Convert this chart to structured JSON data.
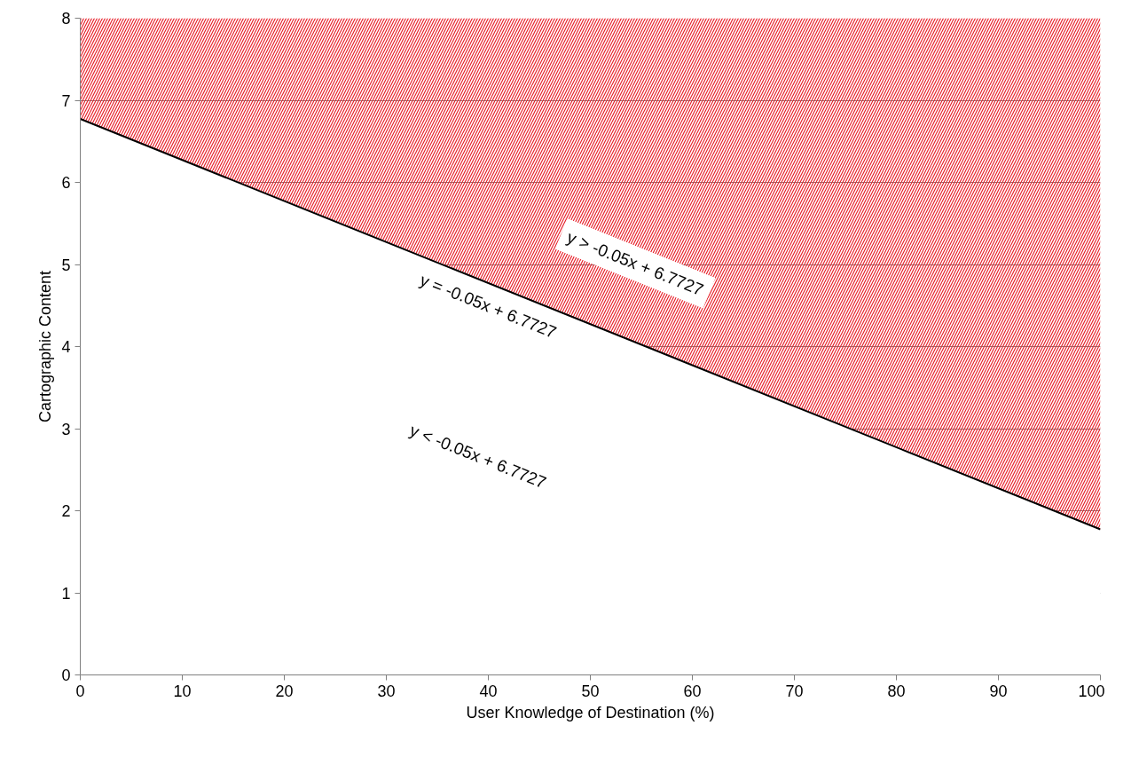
{
  "chart_data": {
    "type": "area",
    "stacked": true,
    "xlabel": "User Knowledge of Destination (%)",
    "ylabel": "Cartographic Content",
    "x": [
      0,
      100
    ],
    "series": [
      {
        "color": "#ffffff",
        "values": [
          6.7727,
          1.7727
        ]
      },
      {
        "color": "#e8202a",
        "values": [
          1.2273,
          6.2273
        ]
      }
    ],
    "xlim": [
      0,
      100
    ],
    "xticks": [
      0,
      10,
      20,
      30,
      40,
      50,
      60,
      70,
      80,
      90,
      100
    ],
    "ylim": [
      0,
      8
    ],
    "yticks": [
      0,
      1,
      2,
      3,
      4,
      5,
      6,
      7,
      8
    ],
    "grid": "y",
    "annotations": [
      "y > -0.05x + 6.7727",
      "y = -0.05x + 6.7727",
      "y < -0.05x + 6.7727"
    ]
  }
}
